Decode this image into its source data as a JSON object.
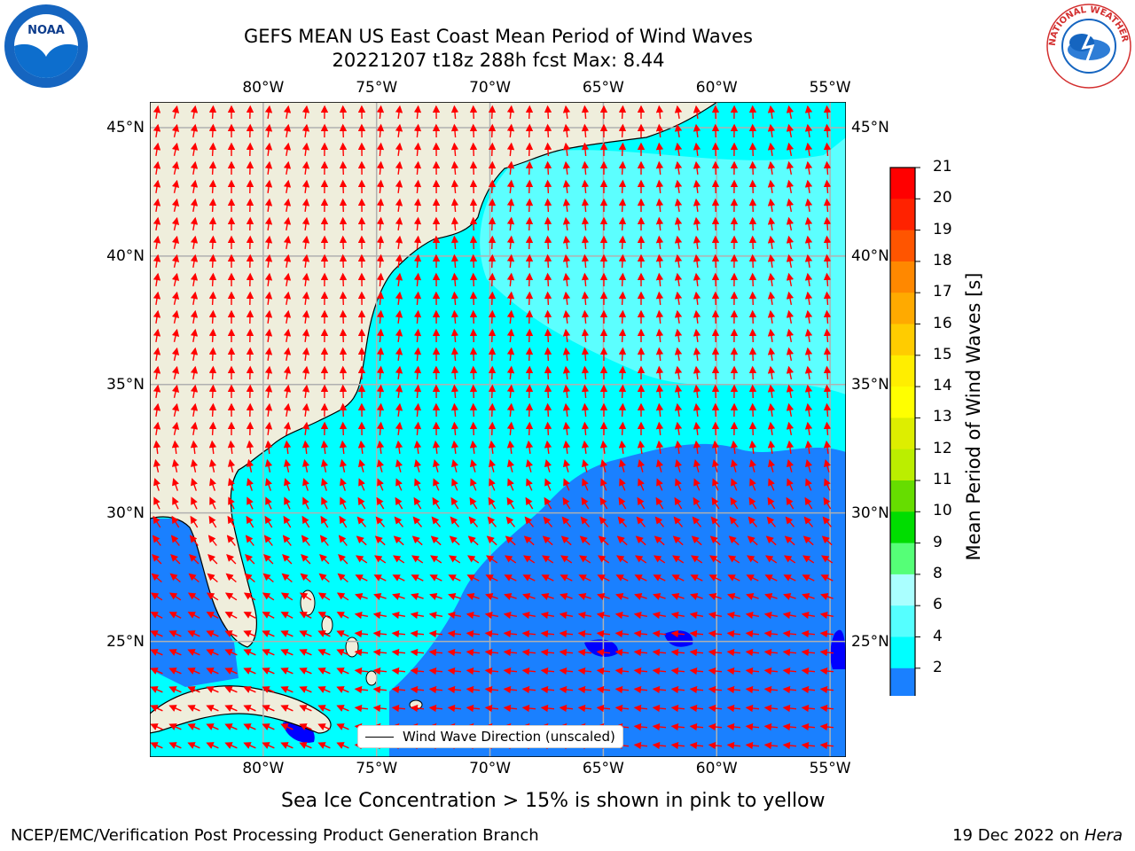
{
  "title": {
    "line1": "GEFS MEAN US East Coast Mean Period of Wind Waves",
    "line2": "20221207 t18z 288h fcst   Max: 8.44"
  },
  "map": {
    "lon_range": [
      -85,
      -54.3
    ],
    "lat_range": [
      20.5,
      46
    ],
    "lon_ticks": [
      "80°W",
      "75°W",
      "70°W",
      "65°W",
      "60°W",
      "55°W"
    ],
    "lat_ticks": [
      "45°N",
      "40°N",
      "35°N",
      "30°N",
      "25°N"
    ],
    "land_color": "#efeedc",
    "grid": true
  },
  "colorbar": {
    "label": "Mean Period of Wind Waves [s]",
    "ticks": [
      "21",
      "20",
      "19",
      "18",
      "17",
      "16",
      "15",
      "14",
      "13",
      "12",
      "11",
      "10",
      "9",
      "8",
      "6",
      "4",
      "2"
    ],
    "colors": [
      "#ff0000",
      "#ff2200",
      "#ff5500",
      "#ff8800",
      "#ffaa00",
      "#ffcc00",
      "#ffee00",
      "#ffff00",
      "#ddee00",
      "#bbee00",
      "#66dd00",
      "#00dd00",
      "#55ff77",
      "#aaffff",
      "#55ffff",
      "#00ffff",
      "#1a80ff"
    ],
    "extend_color": "#0000ff"
  },
  "legend": {
    "label": "Wind Wave Direction (unscaled)"
  },
  "subtitle": "Sea Ice Concentration > 15% is shown in pink to yellow",
  "footer": {
    "left": "NCEP/EMC/Verification Post Processing Product Generation Branch",
    "right_prefix": "19 Dec 2022 on",
    "right_host": "Hera"
  },
  "logos": {
    "noaa": "NOAA",
    "nws": "NATIONAL WEATHER SERVICE"
  },
  "arrow_color": "#ff0000"
}
